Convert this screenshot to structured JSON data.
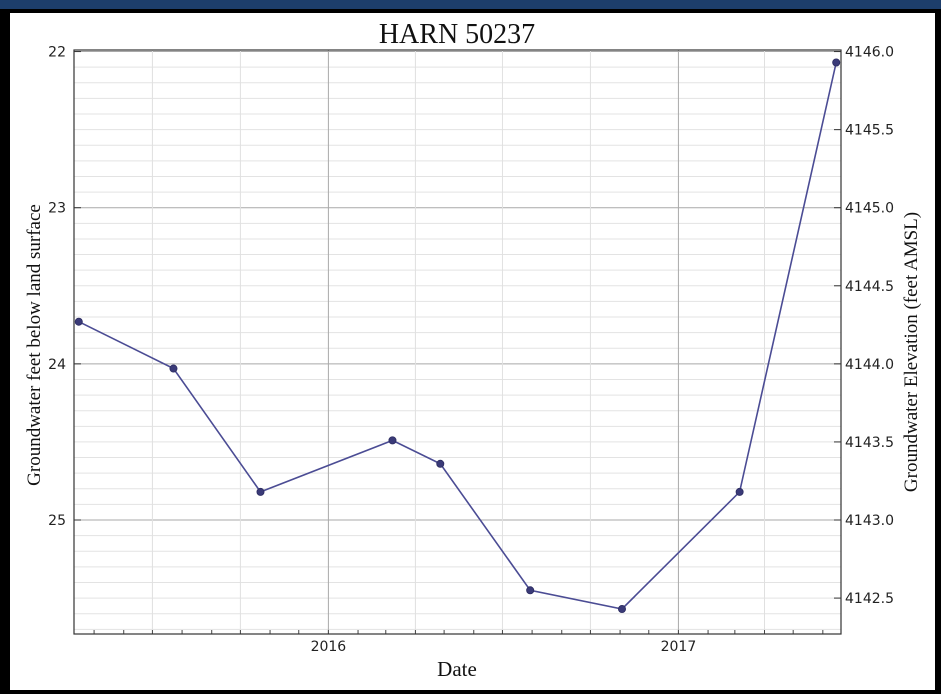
{
  "chart_data": {
    "type": "line",
    "title": "HARN 50237",
    "xlabel": "Date",
    "ylabel": "Groundwater feet below land surface",
    "y2label": "Groundwater Elevation (feet AMSL)",
    "y_axis_inverted": true,
    "ylim": [
      21.99,
      25.73
    ],
    "y2lim": [
      4142.27,
      4146.01
    ],
    "x_range": [
      "2015-04-10",
      "2017-06-20"
    ],
    "x_ticks": [
      "2016",
      "2017"
    ],
    "y_ticks": [
      "22",
      "23",
      "24",
      "25"
    ],
    "y2_ticks": [
      "4146.0",
      "4145.5",
      "4145.0",
      "4144.5",
      "4144.0",
      "4143.5",
      "4143.0",
      "4142.5"
    ],
    "grid": true,
    "series": [
      {
        "color": "#4b4c94",
        "points": [
          {
            "x": "2015-04-15",
            "y": 23.73
          },
          {
            "x": "2015-07-23",
            "y": 24.03
          },
          {
            "x": "2015-10-22",
            "y": 24.82
          },
          {
            "x": "2016-03-08",
            "y": 24.49
          },
          {
            "x": "2016-04-27",
            "y": 24.64
          },
          {
            "x": "2016-07-30",
            "y": 25.45
          },
          {
            "x": "2016-11-03",
            "y": 25.57
          },
          {
            "x": "2017-03-06",
            "y": 24.82
          },
          {
            "x": "2017-06-15",
            "y": 22.07
          }
        ]
      }
    ]
  }
}
